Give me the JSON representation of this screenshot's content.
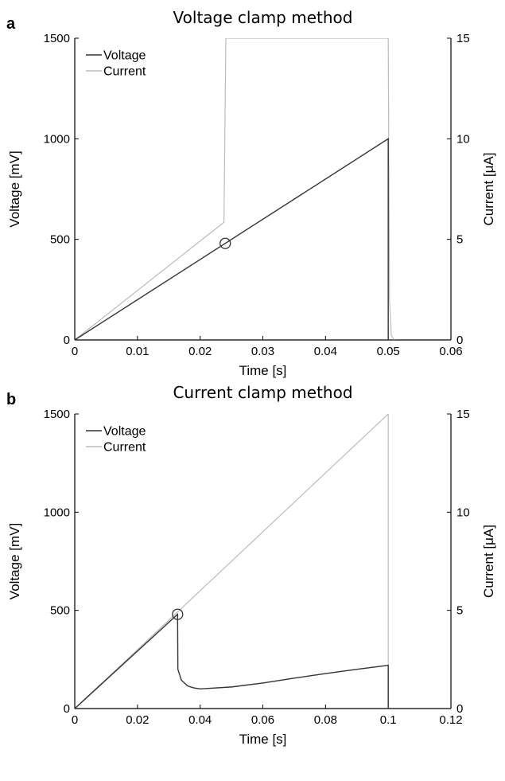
{
  "chart_data": [
    {
      "type": "line",
      "panel_label": "a",
      "title": "Voltage clamp method",
      "xlabel": "Time [s]",
      "ylabel_left": "Voltage [mV]",
      "ylabel_right": "Current [μA]",
      "xlim": [
        0,
        0.06
      ],
      "ylim_left": [
        0,
        1500
      ],
      "ylim_right": [
        0,
        15
      ],
      "x_ticks": [
        "0",
        "0.01",
        "0.02",
        "0.03",
        "0.04",
        "0.05",
        "0.06"
      ],
      "y_ticks_left": [
        "0",
        "500",
        "1000",
        "1500"
      ],
      "y_ticks_right": [
        "0",
        "5",
        "10",
        "15"
      ],
      "grid": false,
      "legend_position": "top-left",
      "series": [
        {
          "name": "Voltage",
          "axis": "left",
          "color": "#333333",
          "points": [
            [
              0,
              0
            ],
            [
              0.05,
              1000
            ],
            [
              0.05,
              0
            ]
          ]
        },
        {
          "name": "Current",
          "axis": "right",
          "color": "#bbbbbb",
          "points": [
            [
              0,
              0
            ],
            [
              0.0238,
              5.85
            ],
            [
              0.0241,
              15
            ],
            [
              0.05,
              15
            ],
            [
              0.0502,
              2
            ],
            [
              0.0505,
              0.2
            ],
            [
              0.051,
              0
            ]
          ]
        }
      ],
      "marker": {
        "x": 0.024,
        "y": 480,
        "axis": "left",
        "shape": "open-circle"
      }
    },
    {
      "type": "line",
      "panel_label": "b",
      "title": "Current clamp method",
      "xlabel": "Time [s]",
      "ylabel_left": "Voltage [mV]",
      "ylabel_right": "Current [μA]",
      "xlim": [
        0,
        0.12
      ],
      "ylim_left": [
        0,
        1500
      ],
      "ylim_right": [
        0,
        15
      ],
      "x_ticks": [
        "0",
        "0.02",
        "0.04",
        "0.06",
        "0.08",
        "0.1",
        "0.12"
      ],
      "y_ticks_left": [
        "0",
        "500",
        "1000",
        "1500"
      ],
      "y_ticks_right": [
        "0",
        "5",
        "10",
        "15"
      ],
      "grid": false,
      "legend_position": "top-left",
      "series": [
        {
          "name": "Voltage",
          "axis": "left",
          "color": "#333333",
          "points": [
            [
              0,
              0
            ],
            [
              0.0328,
              480
            ],
            [
              0.0329,
              200
            ],
            [
              0.034,
              145
            ],
            [
              0.036,
              115
            ],
            [
              0.038,
              105
            ],
            [
              0.04,
              100
            ],
            [
              0.05,
              110
            ],
            [
              0.06,
              130
            ],
            [
              0.07,
              155
            ],
            [
              0.08,
              178
            ],
            [
              0.09,
              200
            ],
            [
              0.1,
              220
            ],
            [
              0.1,
              0
            ]
          ]
        },
        {
          "name": "Current",
          "axis": "right",
          "color": "#bbbbbb",
          "points": [
            [
              0,
              0
            ],
            [
              0.1,
              15
            ],
            [
              0.1,
              0
            ]
          ]
        }
      ],
      "marker": {
        "x": 0.0328,
        "y": 480,
        "axis": "left",
        "shape": "open-circle"
      }
    }
  ]
}
